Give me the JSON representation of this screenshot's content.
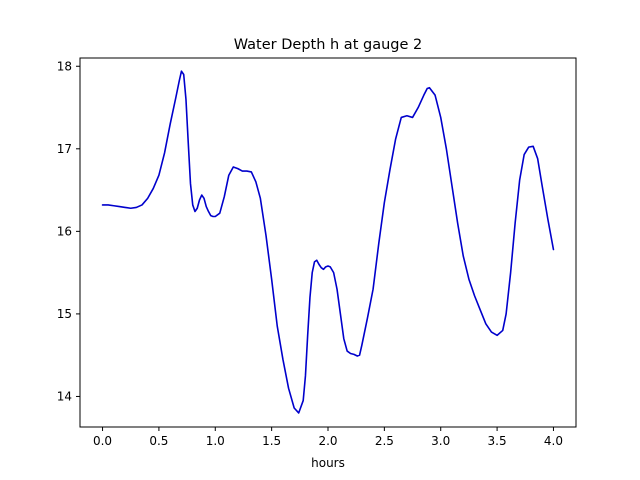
{
  "chart_data": {
    "type": "line",
    "title": "Water Depth h at gauge 2",
    "xlabel": "hours",
    "ylabel": "",
    "xlim": [
      -0.2,
      4.2
    ],
    "ylim": [
      13.63,
      18.1
    ],
    "xticks": [
      0.0,
      0.5,
      1.0,
      1.5,
      2.0,
      2.5,
      3.0,
      3.5,
      4.0
    ],
    "xtick_labels": [
      "0.0",
      "0.5",
      "1.0",
      "1.5",
      "2.0",
      "2.5",
      "3.0",
      "3.5",
      "4.0"
    ],
    "yticks": [
      14,
      15,
      16,
      17,
      18
    ],
    "ytick_labels": [
      "14",
      "15",
      "16",
      "17",
      "18"
    ],
    "grid": false,
    "line_color": "#0000cc",
    "series": [
      {
        "x": [
          0.0,
          0.05,
          0.1,
          0.15,
          0.2,
          0.25,
          0.3,
          0.35,
          0.4,
          0.45,
          0.5,
          0.55,
          0.6,
          0.65,
          0.68,
          0.7,
          0.72,
          0.74,
          0.76,
          0.78,
          0.8,
          0.82,
          0.84,
          0.86,
          0.88,
          0.9,
          0.92,
          0.94,
          0.96,
          0.98,
          1.0,
          1.04,
          1.08,
          1.12,
          1.16,
          1.2,
          1.24,
          1.28,
          1.32,
          1.36,
          1.4,
          1.45,
          1.5,
          1.55,
          1.6,
          1.65,
          1.7,
          1.74,
          1.78,
          1.8,
          1.82,
          1.84,
          1.86,
          1.88,
          1.9,
          1.92,
          1.94,
          1.96,
          1.98,
          2.0,
          2.02,
          2.05,
          2.08,
          2.11,
          2.14,
          2.17,
          2.2,
          2.23,
          2.26,
          2.28,
          2.3,
          2.35,
          2.4,
          2.45,
          2.5,
          2.55,
          2.6,
          2.65,
          2.7,
          2.75,
          2.8,
          2.85,
          2.88,
          2.9,
          2.95,
          3.0,
          3.05,
          3.1,
          3.15,
          3.2,
          3.25,
          3.3,
          3.35,
          3.4,
          3.45,
          3.5,
          3.55,
          3.58,
          3.62,
          3.66,
          3.7,
          3.74,
          3.78,
          3.82,
          3.86,
          3.9,
          3.95,
          4.0
        ],
        "y": [
          16.32,
          16.32,
          16.31,
          16.3,
          16.29,
          16.28,
          16.29,
          16.32,
          16.4,
          16.52,
          16.68,
          16.95,
          17.3,
          17.62,
          17.82,
          17.94,
          17.9,
          17.6,
          17.08,
          16.58,
          16.32,
          16.24,
          16.28,
          16.38,
          16.44,
          16.4,
          16.3,
          16.24,
          16.19,
          16.18,
          16.18,
          16.22,
          16.42,
          16.68,
          16.78,
          16.76,
          16.73,
          16.73,
          16.72,
          16.6,
          16.4,
          15.95,
          15.42,
          14.85,
          14.45,
          14.1,
          13.86,
          13.8,
          13.95,
          14.25,
          14.75,
          15.2,
          15.5,
          15.63,
          15.65,
          15.6,
          15.56,
          15.54,
          15.57,
          15.58,
          15.57,
          15.5,
          15.3,
          15.0,
          14.7,
          14.55,
          14.52,
          14.51,
          14.49,
          14.5,
          14.62,
          14.95,
          15.3,
          15.85,
          16.35,
          16.75,
          17.12,
          17.38,
          17.4,
          17.38,
          17.5,
          17.65,
          17.73,
          17.74,
          17.65,
          17.38,
          17.0,
          16.55,
          16.1,
          15.7,
          15.42,
          15.22,
          15.05,
          14.88,
          14.78,
          14.74,
          14.8,
          15.0,
          15.5,
          16.1,
          16.62,
          16.93,
          17.02,
          17.03,
          16.88,
          16.55,
          16.15,
          15.78
        ]
      }
    ]
  }
}
